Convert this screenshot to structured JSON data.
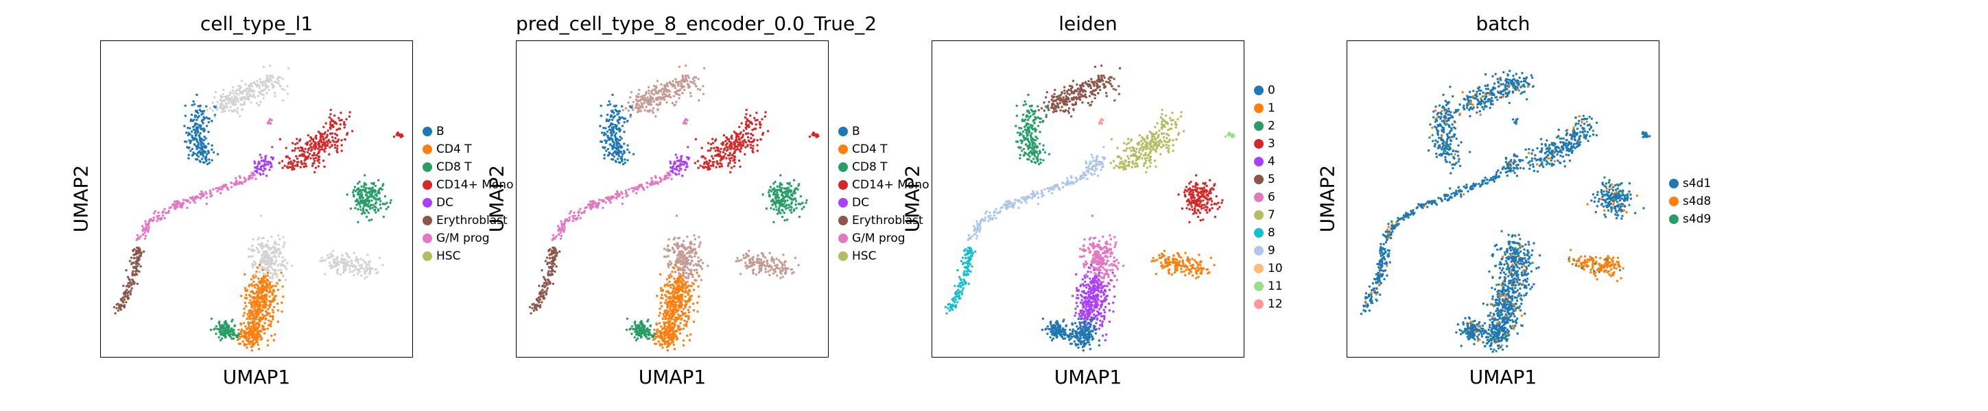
{
  "chart_data": [
    {
      "type": "scatter",
      "title": "cell_type_l1",
      "xlabel": "UMAP1",
      "ylabel": "UMAP2",
      "legend": "right",
      "grid": false,
      "categories": [
        "B",
        "CD4 T",
        "CD8 T",
        "CD14+ Mono",
        "DC",
        "Erythroblast",
        "G/M prog",
        "HSC"
      ],
      "colors": [
        "#1f77b4",
        "#ff7f0e",
        "#279e68",
        "#d62728",
        "#aa40fc",
        "#8c564b",
        "#e377c2",
        "#b5bd61"
      ],
      "extra_color": "#d3d3d3"
    },
    {
      "type": "scatter",
      "title": "pred_cell_type_8_encoder_0.0_True_2",
      "xlabel": "UMAP1",
      "ylabel": "UMAP2",
      "legend": "right",
      "grid": false,
      "categories": [
        "B",
        "CD4 T",
        "CD8 T",
        "CD14+ Mono",
        "DC",
        "Erythroblast",
        "G/M prog",
        "HSC"
      ],
      "colors": [
        "#1f77b4",
        "#ff7f0e",
        "#279e68",
        "#d62728",
        "#aa40fc",
        "#8c564b",
        "#e377c2",
        "#b5bd61"
      ],
      "extra_color": "#c49c94"
    },
    {
      "type": "scatter",
      "title": "leiden",
      "xlabel": "UMAP1",
      "ylabel": "UMAP2",
      "legend": "right",
      "grid": false,
      "categories": [
        "0",
        "1",
        "2",
        "3",
        "4",
        "5",
        "6",
        "7",
        "8",
        "9",
        "10",
        "11",
        "12"
      ],
      "colors": [
        "#1f77b4",
        "#ff7f0e",
        "#279e68",
        "#d62728",
        "#aa40fc",
        "#8c564b",
        "#e377c2",
        "#b5bd61",
        "#17becf",
        "#aec7e8",
        "#ffbb78",
        "#98df8a",
        "#ff9896"
      ]
    },
    {
      "type": "scatter",
      "title": "batch",
      "xlabel": "UMAP1",
      "ylabel": "UMAP2",
      "legend": "right",
      "grid": false,
      "categories": [
        "s4d1",
        "s4d8",
        "s4d9"
      ],
      "colors": [
        "#1f77b4",
        "#ff7f0e",
        "#279e68"
      ]
    }
  ]
}
